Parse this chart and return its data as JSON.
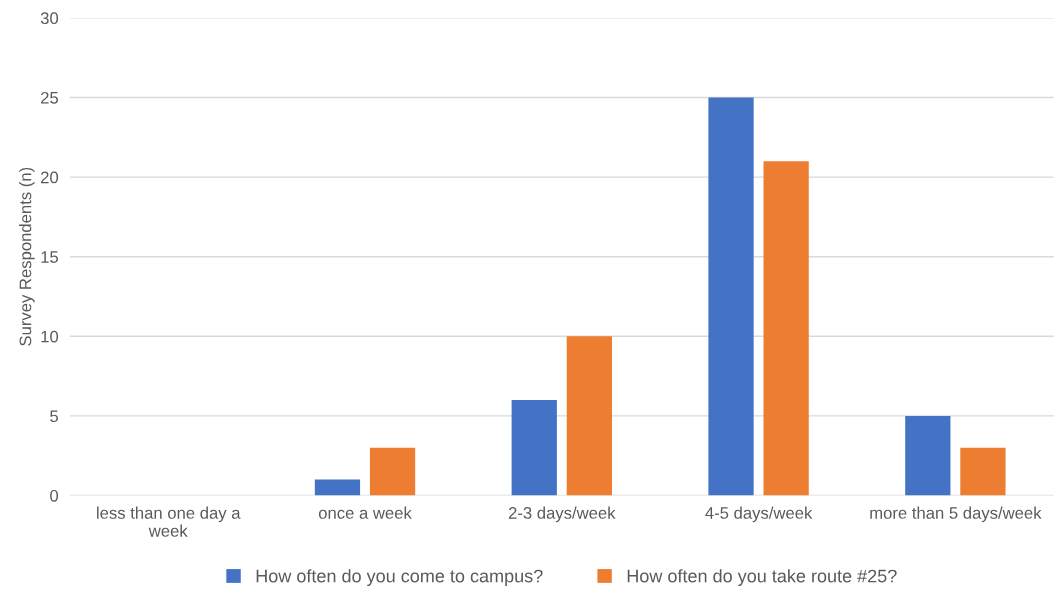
{
  "chart_data": {
    "type": "bar",
    "ylabel": "Survey Respondents (n)",
    "categories": [
      "less than one day a\nweek",
      "once a week",
      "2-3 days/week",
      "4-5 days/week",
      "more than 5 days/week"
    ],
    "series": [
      {
        "name": "How often do you come to campus?",
        "color": "#4472c4",
        "values": [
          0,
          1,
          6,
          25,
          5
        ]
      },
      {
        "name": "How often do you take route #25?",
        "color": "#ed7d31",
        "values": [
          0,
          3,
          10,
          21,
          3
        ]
      }
    ],
    "ylim": [
      0,
      30
    ],
    "yticks": [
      0,
      5,
      10,
      15,
      20,
      25,
      30
    ],
    "grid": "y",
    "legend": "bottom"
  }
}
